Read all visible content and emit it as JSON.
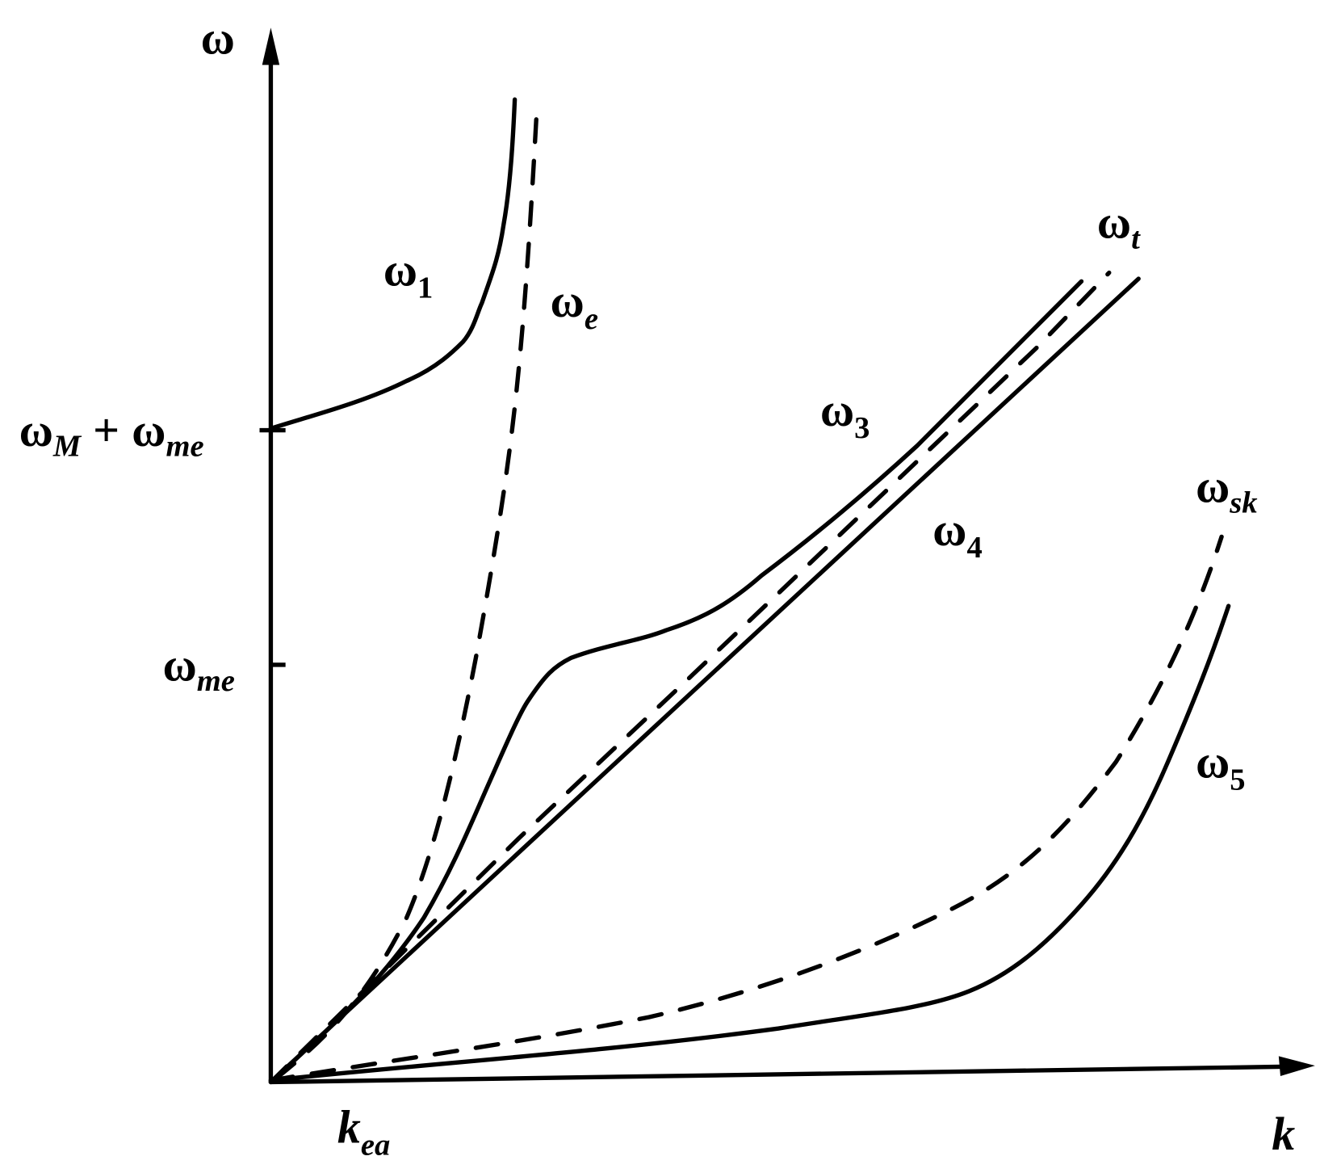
{
  "axes": {
    "y_label": "ω",
    "x_label": "k"
  },
  "y_marks": [
    {
      "base": "ω",
      "sub": "M",
      "operator": "+",
      "base2": "ω",
      "sub2": "me"
    },
    {
      "base": "ω",
      "sub": "me"
    }
  ],
  "x_marks": [
    {
      "base": "k",
      "sub": "ea"
    }
  ],
  "curve_labels": [
    {
      "base": "ω",
      "sub": "1"
    },
    {
      "base": "ω",
      "sub": "e"
    },
    {
      "base": "ω",
      "sub": "t"
    },
    {
      "base": "ω",
      "sub": "3"
    },
    {
      "base": "ω",
      "sub": "4"
    },
    {
      "base": "ω",
      "sub": "sk"
    },
    {
      "base": "ω",
      "sub": "5"
    }
  ]
}
